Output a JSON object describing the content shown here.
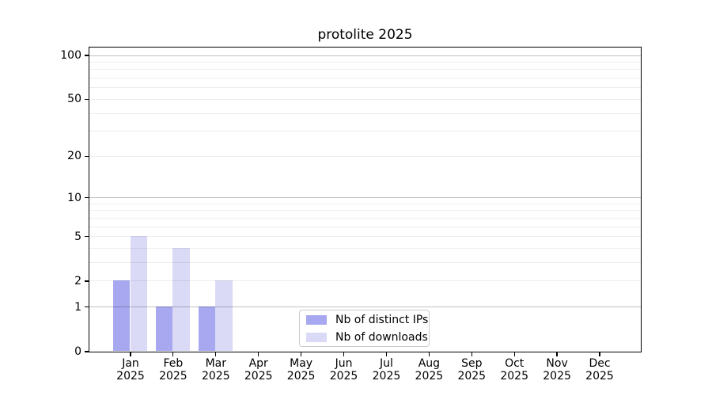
{
  "chart_data": {
    "type": "bar",
    "title": "protolite 2025",
    "categories": [
      "Jan 2025",
      "Feb 2025",
      "Mar 2025",
      "Apr 2025",
      "May 2025",
      "Jun 2025",
      "Jul 2025",
      "Aug 2025",
      "Sep 2025",
      "Oct 2025",
      "Nov 2025",
      "Dec 2025"
    ],
    "x_tick_line1": [
      "Jan",
      "Feb",
      "Mar",
      "Apr",
      "May",
      "Jun",
      "Jul",
      "Aug",
      "Sep",
      "Oct",
      "Nov",
      "Dec"
    ],
    "x_tick_line2": "2025",
    "series": [
      {
        "name": "Nb of distinct IPs",
        "color": "#a8a8f0",
        "values": [
          2,
          1,
          1,
          0,
          0,
          0,
          0,
          0,
          0,
          0,
          0,
          0
        ]
      },
      {
        "name": "Nb of downloads",
        "color": "#dadaf7",
        "values": [
          5,
          4,
          2,
          0,
          0,
          0,
          0,
          0,
          0,
          0,
          0,
          0
        ]
      }
    ],
    "xlabel": "",
    "ylabel": "",
    "yscale": "log1p",
    "ylim": [
      0,
      113
    ],
    "yticks": [
      0,
      1,
      2,
      5,
      10,
      20,
      50,
      100
    ],
    "gridlines_dark": [
      1,
      10,
      100
    ],
    "gridlines_light": [
      2,
      3,
      4,
      5,
      6,
      7,
      8,
      9,
      20,
      30,
      40,
      50,
      60,
      70,
      80,
      90
    ],
    "grid": true,
    "legend_position": "lower center",
    "colors": {
      "spine": "#000000",
      "grid_decade": "rgba(0,0,0,0.24)",
      "grid_minor": "rgba(0,0,0,0.07)",
      "legend_border": "#cccccc",
      "background": "#ffffff",
      "text": "#000000"
    }
  }
}
